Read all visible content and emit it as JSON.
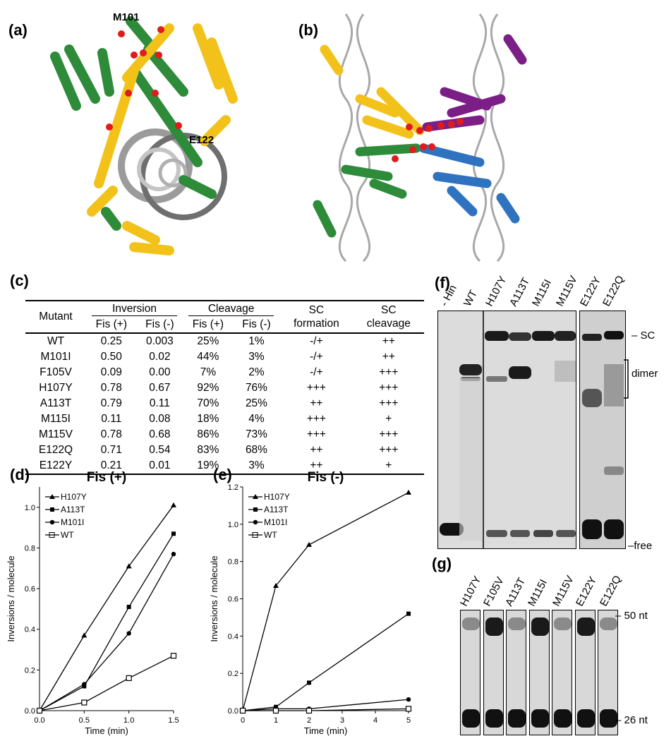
{
  "panels": {
    "a": "(a)",
    "b": "(b)",
    "c": "(c)",
    "d": "(d)",
    "e": "(e)",
    "f": "(f)",
    "g": "(g)"
  },
  "structure_a": {
    "label1": "M101",
    "label2": "E122"
  },
  "table": {
    "headers": {
      "mutant": "Mutant",
      "inversion": "Inversion",
      "cleavage": "Cleavage",
      "sc_formation_1": "SC",
      "sc_formation_2": "formation",
      "sc_cleavage_1": "SC",
      "sc_cleavage_2": "cleavage",
      "fis_plus": "Fis (+)",
      "fis_minus": "Fis (-)"
    },
    "rows": [
      [
        "WT",
        "0.25",
        "0.003",
        "25%",
        "1%",
        "-/+",
        "++"
      ],
      [
        "M101I",
        "0.50",
        "0.02",
        "44%",
        "3%",
        "-/+",
        "++"
      ],
      [
        "F105V",
        "0.09",
        "0.00",
        "7%",
        "2%",
        "-/+",
        "+++"
      ],
      [
        "H107Y",
        "0.78",
        "0.67",
        "92%",
        "76%",
        "+++",
        "+++"
      ],
      [
        "A113T",
        "0.79",
        "0.11",
        "70%",
        "25%",
        "++",
        "+++"
      ],
      [
        "M115I",
        "0.11",
        "0.08",
        "18%",
        "4%",
        "+++",
        "+"
      ],
      [
        "M115V",
        "0.78",
        "0.68",
        "86%",
        "73%",
        "+++",
        "+++"
      ],
      [
        "E122Q",
        "0.71",
        "0.54",
        "83%",
        "68%",
        "++",
        "+++"
      ],
      [
        "E122Y",
        "0.21",
        "0.01",
        "19%",
        "3%",
        "++",
        "+"
      ]
    ]
  },
  "chart_data": [
    {
      "type": "line",
      "title": "Fis (+)",
      "xlabel": "Time (min)",
      "ylabel": "Inversions / molecule",
      "xlim": [
        0,
        1.5
      ],
      "ylim": [
        0,
        1.1
      ],
      "xticks": [
        "0.0",
        "0.5",
        "1.0",
        "1.5"
      ],
      "yticks": [
        "0.0",
        "0.2",
        "0.4",
        "0.6",
        "0.8",
        "1.0"
      ],
      "x": [
        0,
        0.5,
        1.0,
        1.5
      ],
      "series": [
        {
          "name": "H107Y",
          "marker": "triangle",
          "values": [
            0,
            0.37,
            0.71,
            1.01
          ]
        },
        {
          "name": "A113T",
          "marker": "square",
          "values": [
            0,
            0.12,
            0.51,
            0.87
          ]
        },
        {
          "name": "M101I",
          "marker": "circle",
          "values": [
            0,
            0.13,
            0.38,
            0.77
          ]
        },
        {
          "name": "WT",
          "marker": "open-square",
          "values": [
            0,
            0.04,
            0.16,
            0.27
          ]
        }
      ]
    },
    {
      "type": "line",
      "title": "Fis (-)",
      "xlabel": "Time (min)",
      "ylabel": "Inversions / molecule",
      "xlim": [
        0,
        5
      ],
      "ylim": [
        0,
        1.2
      ],
      "xticks": [
        "0",
        "1",
        "2",
        "3",
        "4",
        "5"
      ],
      "yticks": [
        "0.0",
        "0.2",
        "0.4",
        "0.6",
        "0.8",
        "1.0",
        "1.2"
      ],
      "x": [
        0,
        1,
        2,
        5
      ],
      "series": [
        {
          "name": "H107Y",
          "marker": "triangle",
          "values": [
            0,
            0.67,
            0.89,
            1.17
          ]
        },
        {
          "name": "A113T",
          "marker": "square",
          "values": [
            0,
            0.02,
            0.15,
            0.52
          ]
        },
        {
          "name": "M101I",
          "marker": "circle",
          "values": [
            0,
            0.01,
            0.01,
            0.06
          ]
        },
        {
          "name": "WT",
          "marker": "open-square",
          "values": [
            0,
            0.0,
            0.0,
            0.01
          ]
        }
      ]
    }
  ],
  "gel_f": {
    "lanes": [
      "- Hin",
      "WT",
      "H107Y",
      "A113T",
      "M115I",
      "M115V",
      "E122Y",
      "E122Q"
    ],
    "markers": [
      "SC",
      "dimer",
      "free"
    ]
  },
  "gel_g": {
    "lanes": [
      "H107Y",
      "F105V",
      "A113T",
      "M115I",
      "M115V",
      "E122Y",
      "E122Q"
    ],
    "markers": [
      "50 nt",
      "26 nt"
    ]
  },
  "colors": {
    "green": "#2e8b3a",
    "gold": "#f2c21b",
    "purple": "#7b1f86",
    "blue": "#2f73c0",
    "dna": "#9a9a9a",
    "sphere": "#e11b1b"
  }
}
